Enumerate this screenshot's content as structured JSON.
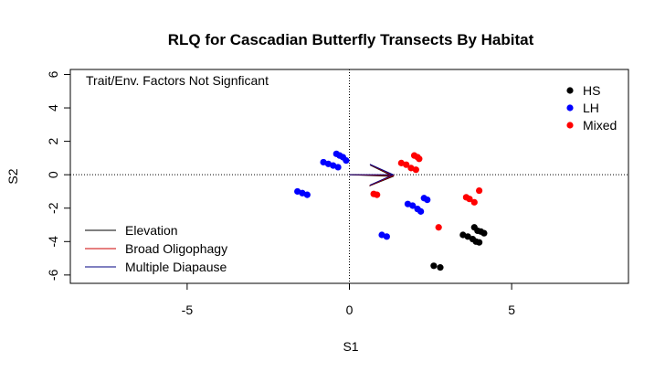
{
  "chart_data": {
    "type": "scatter",
    "title": "RLQ for Cascadian Butterfly Transects By Habitat",
    "xlabel": "S1",
    "ylabel": "S2",
    "xlim": [
      -8.6,
      8.6
    ],
    "ylim": [
      -6.5,
      6.3
    ],
    "xticks": [
      -5,
      0,
      5
    ],
    "yticks": [
      -6,
      -4,
      -2,
      0,
      2,
      4,
      6
    ],
    "annotation": "Trait/Env. Factors Not Signficant",
    "reference_lines": {
      "x": 0,
      "y": 0,
      "style": "dotted"
    },
    "series": [
      {
        "name": "HS",
        "color": "#000000",
        "points": [
          [
            2.6,
            -5.45
          ],
          [
            2.8,
            -5.55
          ],
          [
            3.5,
            -3.6
          ],
          [
            3.65,
            -3.7
          ],
          [
            3.8,
            -3.85
          ],
          [
            3.9,
            -4.0
          ],
          [
            4.0,
            -4.05
          ],
          [
            3.85,
            -3.15
          ],
          [
            3.95,
            -3.35
          ],
          [
            4.05,
            -3.4
          ],
          [
            4.15,
            -3.5
          ]
        ]
      },
      {
        "name": "LH",
        "color": "#0000ff",
        "points": [
          [
            -1.6,
            -1.0
          ],
          [
            -1.45,
            -1.1
          ],
          [
            -1.3,
            -1.2
          ],
          [
            -0.8,
            0.75
          ],
          [
            -0.65,
            0.65
          ],
          [
            -0.5,
            0.55
          ],
          [
            -0.35,
            0.45
          ],
          [
            -0.4,
            1.25
          ],
          [
            -0.3,
            1.15
          ],
          [
            -0.2,
            1.05
          ],
          [
            -0.1,
            0.85
          ],
          [
            1.0,
            -3.6
          ],
          [
            1.15,
            -3.7
          ],
          [
            1.8,
            -1.75
          ],
          [
            1.95,
            -1.85
          ],
          [
            2.1,
            -2.05
          ],
          [
            2.2,
            -2.2
          ],
          [
            2.3,
            -1.4
          ],
          [
            2.4,
            -1.5
          ]
        ]
      },
      {
        "name": "Mixed",
        "color": "#ff0000",
        "points": [
          [
            0.75,
            -1.15
          ],
          [
            0.85,
            -1.2
          ],
          [
            1.6,
            0.7
          ],
          [
            1.75,
            0.6
          ],
          [
            1.9,
            0.4
          ],
          [
            2.05,
            0.3
          ],
          [
            2.0,
            1.15
          ],
          [
            2.1,
            1.05
          ],
          [
            2.15,
            0.95
          ],
          [
            2.75,
            -3.15
          ],
          [
            3.6,
            -1.35
          ],
          [
            3.7,
            -1.45
          ],
          [
            3.85,
            -1.65
          ],
          [
            4.0,
            -0.95
          ]
        ]
      }
    ],
    "legend_points": {
      "position": "top-right",
      "entries": [
        {
          "label": "HS",
          "color": "#000000"
        },
        {
          "label": "LH",
          "color": "#0000ff"
        },
        {
          "label": "Mixed",
          "color": "#ff0000"
        }
      ]
    },
    "arrows": [
      {
        "name": "Elevation",
        "color": "#000000",
        "from": [
          0,
          0
        ],
        "to": [
          1.35,
          -0.1
        ]
      },
      {
        "name": "Broad Oligophagy",
        "color": "#cc0000",
        "from": [
          0,
          0
        ],
        "to": [
          1.35,
          -0.05
        ]
      },
      {
        "name": "Multiple Diapause",
        "color": "#000080",
        "from": [
          0,
          0
        ],
        "to": [
          1.35,
          0.0
        ]
      }
    ],
    "legend_arrows": {
      "position": "bottom-left",
      "entries": [
        {
          "label": "Elevation",
          "color": "#000000"
        },
        {
          "label": "Broad Oligophagy",
          "color": "#cc0000"
        },
        {
          "label": "Multiple Diapause",
          "color": "#000080"
        }
      ]
    }
  }
}
